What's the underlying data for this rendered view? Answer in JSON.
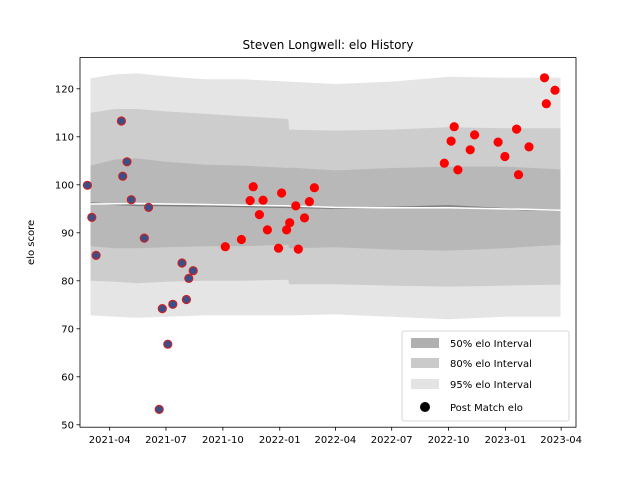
{
  "chart_data": {
    "type": "scatter",
    "title": "Steven Longwell: elo History",
    "xlabel": "",
    "ylabel": "elo score",
    "ylim": [
      49.5,
      126.5
    ],
    "xlim": [
      "2021-02-12",
      "2023-04-25"
    ],
    "grid": false,
    "legend_position": "lower-right",
    "x_ticks": [
      "2021-04",
      "2021-07",
      "2021-10",
      "2022-01",
      "2022-04",
      "2022-07",
      "2022-10",
      "2023-01",
      "2023-04"
    ],
    "x_tick_dates": [
      "2021-04-01",
      "2021-07-01",
      "2021-10-01",
      "2022-01-01",
      "2022-04-01",
      "2022-07-01",
      "2022-10-01",
      "2023-01-01",
      "2023-04-01"
    ],
    "y_ticks": [
      50,
      60,
      70,
      80,
      90,
      100,
      110,
      120
    ],
    "legend": [
      {
        "label": "50% elo Interval",
        "color": "#b0b0b0"
      },
      {
        "label": "80% elo Interval",
        "color": "#cacaca"
      },
      {
        "label": "95% elo Interval",
        "color": "#e3e3e3"
      },
      {
        "label": "Post Match elo",
        "color": "#000000"
      }
    ],
    "bands": {
      "x": [
        "2021-03-01",
        "2021-04-10",
        "2021-05-15",
        "2021-07-01",
        "2021-09-01",
        "2021-11-01",
        "2022-01-15",
        "2022-01-16",
        "2022-04-01",
        "2022-07-01",
        "2022-10-01",
        "2023-01-01",
        "2023-03-31"
      ],
      "p95": [
        [
          72.8,
          122.2
        ],
        [
          72.5,
          123.0
        ],
        [
          72.3,
          123.2
        ],
        [
          72.5,
          122.6
        ],
        [
          72.8,
          122.0
        ],
        [
          72.8,
          122.0
        ],
        [
          72.8,
          121.5
        ],
        [
          72.8,
          121.5
        ],
        [
          73.0,
          121.0
        ],
        [
          72.5,
          121.5
        ],
        [
          72.0,
          122.5
        ],
        [
          72.5,
          122.3
        ],
        [
          72.5,
          122.3
        ]
      ],
      "p80": [
        [
          80.0,
          115.0
        ],
        [
          79.8,
          115.8
        ],
        [
          79.5,
          115.8
        ],
        [
          79.8,
          115.3
        ],
        [
          80.0,
          114.8
        ],
        [
          80.0,
          114.3
        ],
        [
          80.2,
          113.7
        ],
        [
          79.3,
          111.5
        ],
        [
          79.3,
          111.3
        ],
        [
          79.0,
          111.5
        ],
        [
          78.8,
          112.0
        ],
        [
          79.0,
          111.8
        ],
        [
          79.2,
          111.8
        ]
      ],
      "p50": [
        [
          87.2,
          104.0
        ],
        [
          86.8,
          105.3
        ],
        [
          86.8,
          105.5
        ],
        [
          87.0,
          104.8
        ],
        [
          87.2,
          104.2
        ],
        [
          87.2,
          104.0
        ],
        [
          87.5,
          103.5
        ],
        [
          86.8,
          103.6
        ],
        [
          87.0,
          103.0
        ],
        [
          86.5,
          103.5
        ],
        [
          86.3,
          103.8
        ],
        [
          86.8,
          103.8
        ],
        [
          87.5,
          103.2
        ]
      ]
    },
    "mean_line": {
      "color": "#808080",
      "x": [
        "2021-03-01",
        "2021-05-15",
        "2021-09-01",
        "2022-01-15",
        "2022-04-01",
        "2022-07-01",
        "2022-10-01",
        "2022-12-01",
        "2023-02-01",
        "2023-03-31"
      ],
      "y": [
        96.2,
        95.7,
        95.6,
        95.3,
        95.1,
        95.3,
        95.6,
        95.2,
        94.8,
        94.7
      ]
    },
    "median_line": {
      "color": "#ffffff",
      "x": [
        "2021-03-01",
        "2021-05-15",
        "2021-09-01",
        "2022-01-15",
        "2022-04-01",
        "2022-07-01",
        "2022-10-01",
        "2023-02-01",
        "2023-03-31"
      ],
      "y": [
        96.0,
        96.1,
        95.9,
        95.6,
        95.3,
        95.2,
        95.2,
        94.9,
        94.7
      ]
    },
    "series": [
      {
        "fill": "#3a4f8a",
        "stroke": "#cc2222",
        "x": [
          "2021-02-24",
          "2021-03-03",
          "2021-03-10",
          "2021-04-20",
          "2021-04-22",
          "2021-04-29",
          "2021-05-06",
          "2021-05-27",
          "2021-06-03",
          "2021-06-20",
          "2021-06-25",
          "2021-07-04",
          "2021-07-12",
          "2021-07-27",
          "2021-08-03",
          "2021-08-07",
          "2021-08-14"
        ],
        "y": [
          99.9,
          93.2,
          85.3,
          113.3,
          101.8,
          104.8,
          96.9,
          88.9,
          95.3,
          53.2,
          74.2,
          66.8,
          75.1,
          83.7,
          76.1,
          80.5,
          82.1
        ]
      },
      {
        "fill": "#ff0000",
        "stroke": "#ff0000",
        "x": [
          "2021-10-05",
          "2021-10-31",
          "2021-11-14",
          "2021-11-19",
          "2021-11-29",
          "2021-12-05",
          "2021-12-12",
          "2021-12-30",
          "2022-01-04",
          "2022-01-12",
          "2022-01-17",
          "2022-01-27",
          "2022-01-31",
          "2022-02-10",
          "2022-02-18",
          "2022-02-26",
          "2022-09-24",
          "2022-10-05",
          "2022-10-10",
          "2022-10-16",
          "2022-11-05",
          "2022-11-12",
          "2022-12-20",
          "2022-12-31",
          "2023-01-19",
          "2023-01-22",
          "2023-02-08",
          "2023-03-05",
          "2023-03-08",
          "2023-03-22"
        ],
        "y": [
          87.1,
          88.6,
          96.7,
          99.6,
          93.8,
          96.8,
          90.6,
          86.8,
          98.3,
          90.6,
          92.1,
          95.6,
          86.6,
          93.1,
          96.5,
          99.4,
          104.5,
          109.1,
          112.1,
          103.1,
          107.3,
          110.4,
          108.9,
          105.9,
          111.6,
          102.1,
          107.9,
          122.3,
          116.9,
          119.7
        ]
      }
    ]
  }
}
